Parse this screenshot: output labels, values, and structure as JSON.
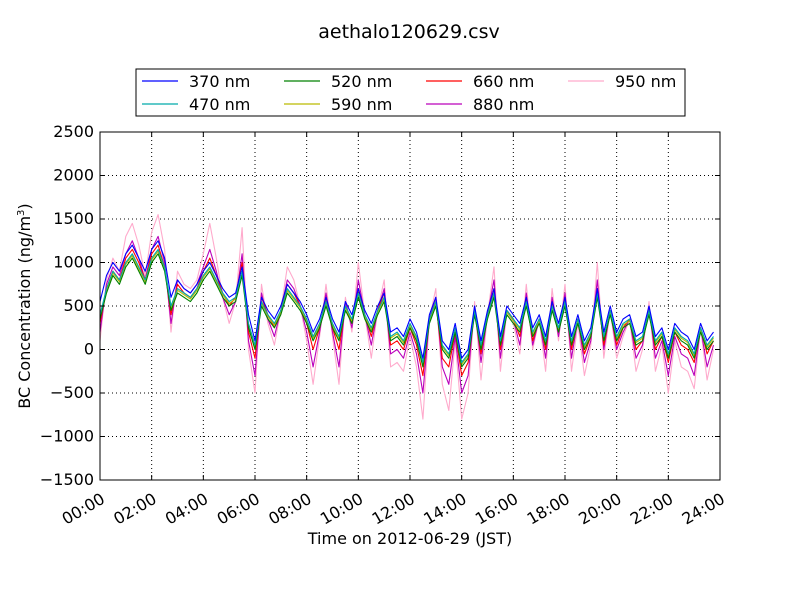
{
  "chart_data": {
    "type": "line",
    "title": "aethalo120629.csv",
    "xlabel": "Time on 2012-06-29 (JST)",
    "ylabel_main": "BC Concentration (ng/m",
    "ylabel_sup": "3",
    "ylabel_close": ")",
    "xlim": [
      "00:00",
      "24:00"
    ],
    "ylim": [
      -1500,
      2500
    ],
    "grid": true,
    "legend_position": "top, outside plot",
    "x_tick_labels": [
      "00:00",
      "02:00",
      "04:00",
      "06:00",
      "08:00",
      "10:00",
      "12:00",
      "14:00",
      "16:00",
      "18:00",
      "20:00",
      "22:00",
      "24:00"
    ],
    "y_tick_labels": [
      "-1500",
      "-1000",
      "-500",
      "0",
      "500",
      "1000",
      "1500",
      "2000",
      "2500"
    ],
    "x_hours": [
      0,
      0.25,
      0.5,
      0.75,
      1,
      1.25,
      1.5,
      1.75,
      2,
      2.25,
      2.5,
      2.75,
      3,
      3.25,
      3.5,
      3.75,
      4,
      4.25,
      4.5,
      4.75,
      5,
      5.25,
      5.5,
      5.75,
      6,
      6.25,
      6.5,
      6.75,
      7,
      7.25,
      7.5,
      7.75,
      8,
      8.25,
      8.5,
      8.75,
      9,
      9.25,
      9.5,
      9.75,
      10,
      10.25,
      10.5,
      10.75,
      11,
      11.25,
      11.5,
      11.75,
      12,
      12.25,
      12.5,
      12.75,
      13,
      13.25,
      13.5,
      13.75,
      14,
      14.25,
      14.5,
      14.75,
      15,
      15.25,
      15.5,
      15.75,
      16,
      16.25,
      16.5,
      16.75,
      17,
      17.25,
      17.5,
      17.75,
      18,
      18.25,
      18.5,
      18.75,
      19,
      19.25,
      19.5,
      19.75,
      20,
      20.25,
      20.5,
      20.75,
      21,
      21.25,
      21.5,
      21.75,
      22,
      22.25,
      22.5,
      22.75,
      23,
      23.25,
      23.5,
      23.75
    ],
    "series": [
      {
        "name": "370 nm",
        "color": "#0000ff",
        "values": [
          550,
          850,
          1000,
          900,
          1100,
          1200,
          1050,
          900,
          1150,
          1250,
          1050,
          600,
          800,
          700,
          650,
          750,
          900,
          1000,
          850,
          700,
          600,
          650,
          950,
          400,
          100,
          600,
          450,
          350,
          500,
          750,
          650,
          550,
          400,
          200,
          350,
          600,
          350,
          200,
          550,
          400,
          700,
          450,
          300,
          500,
          650,
          200,
          250,
          150,
          350,
          200,
          -100,
          400,
          600,
          100,
          0,
          300,
          -100,
          0,
          500,
          100,
          450,
          700,
          150,
          500,
          400,
          300,
          600,
          250,
          400,
          150,
          550,
          300,
          600,
          150,
          400,
          100,
          250,
          700,
          200,
          500,
          200,
          350,
          400,
          150,
          200,
          500,
          150,
          250,
          0,
          300,
          200,
          150,
          0,
          300,
          100,
          200
        ]
      },
      {
        "name": "470 nm",
        "color": "#00aaaa",
        "values": [
          400,
          700,
          900,
          800,
          1000,
          1100,
          950,
          800,
          1050,
          1150,
          950,
          500,
          700,
          650,
          600,
          700,
          850,
          950,
          800,
          650,
          550,
          600,
          900,
          300,
          50,
          550,
          400,
          300,
          450,
          700,
          600,
          500,
          350,
          150,
          300,
          550,
          300,
          150,
          500,
          350,
          650,
          400,
          250,
          450,
          600,
          150,
          200,
          100,
          300,
          150,
          -150,
          350,
          550,
          50,
          -50,
          250,
          -150,
          -50,
          450,
          50,
          400,
          650,
          100,
          450,
          350,
          250,
          550,
          200,
          350,
          100,
          500,
          250,
          550,
          100,
          350,
          50,
          200,
          650,
          150,
          450,
          150,
          300,
          350,
          100,
          150,
          450,
          100,
          200,
          -50,
          250,
          150,
          100,
          -50,
          250,
          50,
          150
        ]
      },
      {
        "name": "520 nm",
        "color": "#008000",
        "values": [
          350,
          650,
          850,
          750,
          950,
          1050,
          900,
          750,
          1000,
          1100,
          900,
          450,
          650,
          600,
          550,
          650,
          800,
          900,
          750,
          600,
          500,
          550,
          850,
          250,
          0,
          500,
          350,
          250,
          400,
          650,
          550,
          450,
          300,
          100,
          250,
          500,
          250,
          100,
          450,
          300,
          600,
          350,
          200,
          400,
          550,
          100,
          150,
          50,
          250,
          100,
          -200,
          300,
          500,
          0,
          -100,
          200,
          -200,
          -100,
          400,
          0,
          350,
          600,
          50,
          400,
          300,
          200,
          500,
          150,
          300,
          50,
          450,
          200,
          500,
          50,
          300,
          0,
          150,
          600,
          100,
          400,
          100,
          250,
          300,
          50,
          100,
          400,
          50,
          150,
          -100,
          200,
          100,
          50,
          -100,
          200,
          0,
          100
        ]
      },
      {
        "name": "590 nm",
        "color": "#bbbb00",
        "values": [
          380,
          680,
          880,
          780,
          980,
          1080,
          930,
          780,
          1030,
          1130,
          930,
          480,
          680,
          630,
          580,
          680,
          830,
          930,
          780,
          630,
          530,
          580,
          880,
          280,
          30,
          530,
          380,
          280,
          430,
          680,
          580,
          480,
          330,
          130,
          280,
          530,
          280,
          130,
          480,
          330,
          630,
          380,
          230,
          430,
          580,
          130,
          180,
          80,
          280,
          130,
          -170,
          330,
          530,
          30,
          -70,
          230,
          -170,
          -70,
          430,
          30,
          380,
          630,
          80,
          430,
          330,
          230,
          530,
          180,
          330,
          80,
          480,
          230,
          530,
          80,
          330,
          30,
          180,
          630,
          130,
          430,
          130,
          280,
          330,
          80,
          130,
          430,
          80,
          180,
          -70,
          230,
          130,
          80,
          -70,
          230,
          30,
          130
        ]
      },
      {
        "name": "660 nm",
        "color": "#ff0000",
        "values": [
          300,
          700,
          900,
          800,
          1050,
          1150,
          1000,
          800,
          1100,
          1200,
          950,
          400,
          750,
          650,
          600,
          700,
          900,
          1050,
          850,
          650,
          500,
          600,
          1000,
          200,
          -100,
          600,
          400,
          250,
          450,
          750,
          650,
          500,
          300,
          0,
          250,
          600,
          250,
          0,
          500,
          300,
          700,
          400,
          150,
          450,
          650,
          50,
          100,
          0,
          250,
          50,
          -300,
          350,
          550,
          -100,
          -200,
          200,
          -300,
          -150,
          450,
          -50,
          400,
          700,
          0,
          450,
          350,
          150,
          600,
          100,
          350,
          0,
          550,
          200,
          600,
          0,
          350,
          -50,
          150,
          700,
          50,
          450,
          50,
          250,
          350,
          0,
          100,
          450,
          0,
          150,
          -150,
          200,
          50,
          0,
          -150,
          250,
          -50,
          100
        ]
      },
      {
        "name": "880 nm",
        "color": "#bb00bb",
        "values": [
          200,
          750,
          950,
          850,
          1100,
          1250,
          1050,
          800,
          1150,
          1300,
          1000,
          300,
          800,
          700,
          650,
          750,
          950,
          1150,
          900,
          600,
          400,
          550,
          1100,
          100,
          -300,
          650,
          350,
          150,
          450,
          800,
          700,
          500,
          200,
          -200,
          200,
          650,
          200,
          -200,
          550,
          250,
          800,
          400,
          50,
          450,
          700,
          -50,
          0,
          -100,
          200,
          -50,
          -500,
          350,
          600,
          -200,
          -400,
          150,
          -500,
          -300,
          500,
          -150,
          400,
          800,
          -100,
          450,
          350,
          50,
          650,
          50,
          350,
          -100,
          600,
          150,
          650,
          -100,
          350,
          -150,
          100,
          800,
          0,
          450,
          0,
          200,
          350,
          -100,
          50,
          500,
          -100,
          100,
          -300,
          150,
          -50,
          -100,
          -300,
          250,
          -200,
          50
        ]
      },
      {
        "name": "950 nm",
        "color": "#ffaacc",
        "values": [
          100,
          800,
          1050,
          900,
          1300,
          1450,
          1200,
          850,
          1350,
          1550,
          1150,
          200,
          900,
          750,
          700,
          800,
          1100,
          1450,
          1050,
          600,
          300,
          550,
          1400,
          0,
          -500,
          750,
          300,
          50,
          450,
          950,
          800,
          500,
          100,
          -400,
          150,
          750,
          150,
          -400,
          600,
          200,
          1000,
          400,
          -100,
          450,
          800,
          -200,
          -150,
          -250,
          150,
          -200,
          -800,
          350,
          700,
          -400,
          -700,
          100,
          -800,
          -500,
          550,
          -350,
          400,
          950,
          -250,
          450,
          300,
          -50,
          750,
          0,
          350,
          -250,
          700,
          100,
          750,
          -250,
          300,
          -300,
          50,
          1000,
          -100,
          450,
          -100,
          150,
          350,
          -250,
          0,
          550,
          -250,
          50,
          -500,
          100,
          -200,
          -250,
          -450,
          250,
          -350,
          0
        ]
      }
    ]
  }
}
